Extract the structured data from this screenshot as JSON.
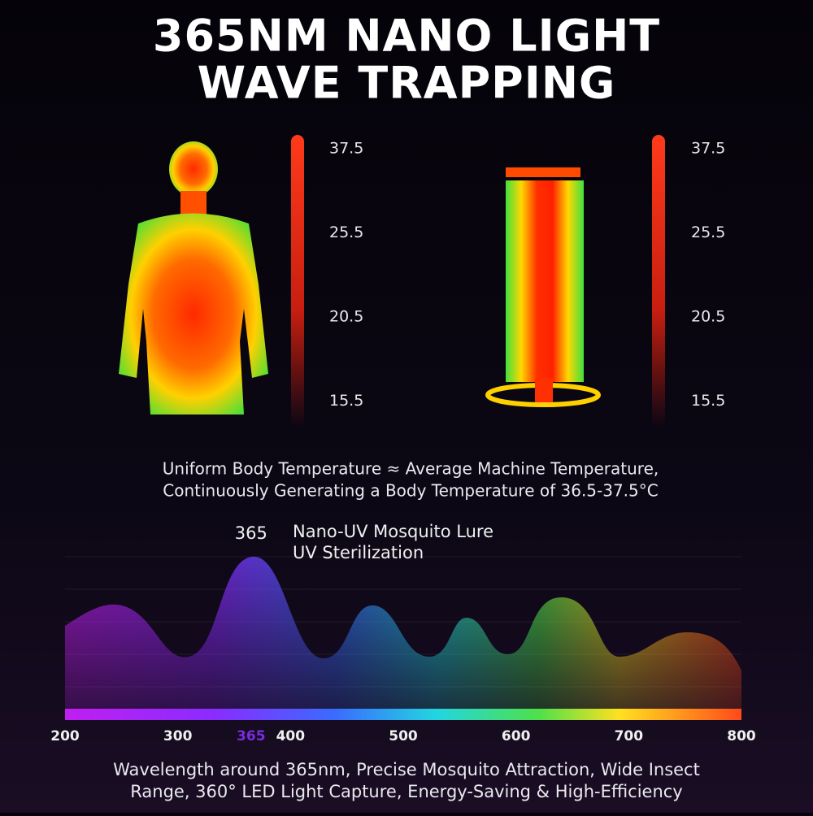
{
  "title": [
    "365NM NANO LIGHT",
    "WAVE TRAPPING"
  ],
  "thermal_scales": [
    {
      "labels": [
        "37.5",
        "25.5",
        "20.5",
        "15.5"
      ]
    },
    {
      "labels": [
        "37.5",
        "25.5",
        "20.5",
        "15.5"
      ]
    }
  ],
  "caption": [
    "Uniform Body Temperature ≈ Average Machine Temperature,",
    "Continuously Generating a Body Temperature of 36.5-37.5°C"
  ],
  "spectrum": {
    "xlim": [
      200,
      800
    ],
    "xticks": [
      200,
      300,
      400,
      500,
      600,
      700,
      800
    ],
    "highlight": 365,
    "annotations": [
      "Nano-UV Mosquito Lure",
      "UV Sterilization"
    ]
  },
  "footer": [
    "Wavelength around 365nm, Precise Mosquito Attraction, Wide Insect",
    "Range, 360° LED Light Capture, Energy-Saving & High-Efficiency"
  ]
}
